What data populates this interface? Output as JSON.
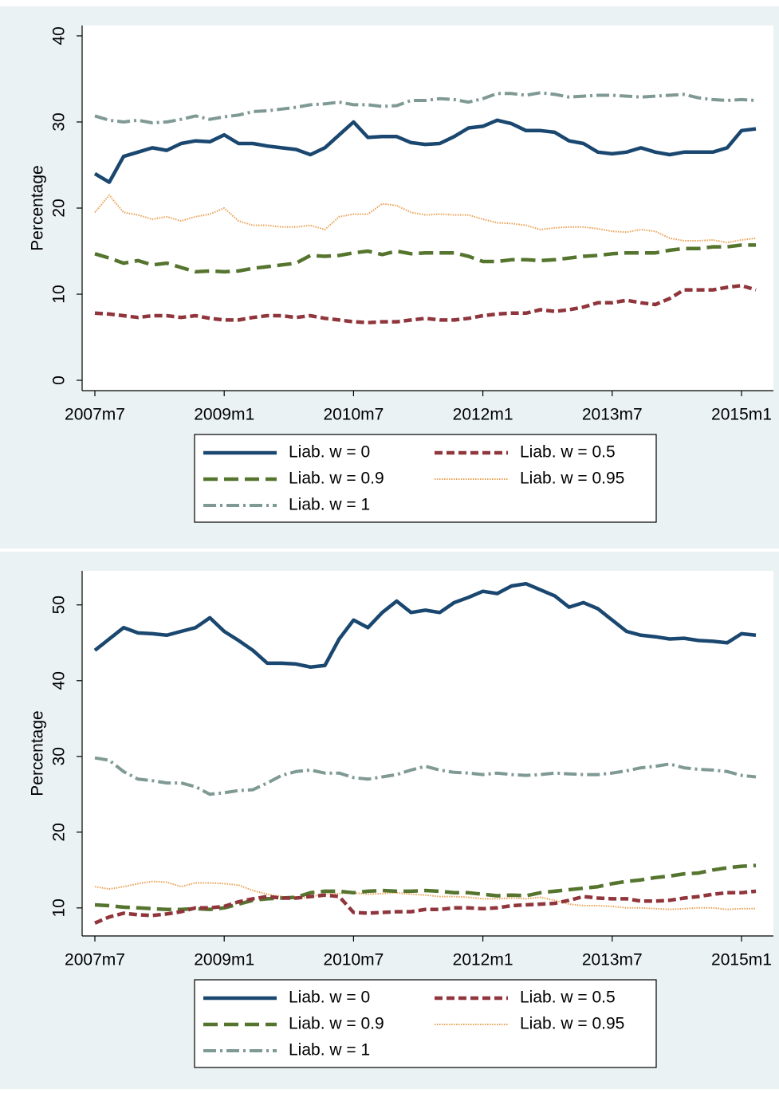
{
  "chart_data": [
    {
      "type": "line",
      "y_label": "Percentage",
      "categories": [
        "2007m7",
        null,
        null,
        null,
        null,
        null,
        null,
        null,
        null,
        "2009m1",
        null,
        null,
        null,
        null,
        null,
        null,
        null,
        null,
        "2010m7",
        null,
        null,
        null,
        null,
        null,
        null,
        null,
        null,
        "2012m1",
        null,
        null,
        null,
        null,
        null,
        null,
        null,
        null,
        "2013m7",
        null,
        null,
        null,
        null,
        null,
        null,
        null,
        null,
        "2015m1",
        null
      ],
      "ylim": [
        -1.2,
        41.2
      ],
      "yticks": [
        0,
        10,
        20,
        30,
        40
      ],
      "series": [
        {
          "name": "Liab. w = 0",
          "color": "#1a476f",
          "dash": "solid",
          "values": [
            24,
            23,
            26,
            26.5,
            27,
            26.7,
            27.5,
            27.8,
            27.7,
            28.5,
            27.5,
            27.5,
            27.2,
            27,
            26.8,
            26.2,
            27,
            28.5,
            30,
            28.2,
            28.3,
            28.3,
            27.6,
            27.4,
            27.5,
            28.3,
            29.3,
            29.5,
            30.2,
            29.8,
            29,
            29,
            28.8,
            27.8,
            27.5,
            26.5,
            26.3,
            26.5,
            27,
            26.5,
            26.2,
            26.5,
            26.5,
            26.5,
            27,
            29,
            29.2
          ]
        },
        {
          "name": "Liab. w = 0.5",
          "color": "#90353b",
          "dash": "short",
          "values": [
            7.8,
            7.7,
            7.5,
            7.3,
            7.5,
            7.5,
            7.3,
            7.5,
            7.2,
            7,
            7,
            7.3,
            7.5,
            7.5,
            7.3,
            7.5,
            7.2,
            7,
            6.8,
            6.7,
            6.8,
            6.8,
            7,
            7.2,
            7,
            7,
            7.2,
            7.5,
            7.7,
            7.8,
            7.8,
            8.2,
            8,
            8.2,
            8.5,
            9,
            9,
            9.3,
            9,
            8.8,
            9.5,
            10.5,
            10.5,
            10.5,
            10.8,
            11,
            10.5
          ]
        },
        {
          "name": "Liab. w = 0.9",
          "color": "#55752f",
          "dash": "long",
          "values": [
            14.7,
            14.2,
            13.6,
            13.9,
            13.4,
            13.6,
            13.1,
            12.6,
            12.7,
            12.6,
            12.7,
            13,
            13.2,
            13.4,
            13.6,
            14.5,
            14.4,
            14.5,
            14.8,
            15,
            14.6,
            15,
            14.7,
            14.8,
            14.8,
            14.8,
            14.4,
            13.8,
            13.8,
            14,
            14,
            13.9,
            14,
            14.2,
            14.4,
            14.5,
            14.7,
            14.8,
            14.8,
            14.8,
            15.1,
            15.3,
            15.3,
            15.5,
            15.5,
            15.7,
            15.7
          ]
        },
        {
          "name": "Liab. w = 0.95",
          "color": "#e8a052",
          "dash": "dot",
          "values": [
            19.5,
            21.5,
            19.5,
            19.2,
            18.7,
            19,
            18.5,
            19,
            19.3,
            20,
            18.5,
            18,
            18,
            17.8,
            17.8,
            18,
            17.5,
            19,
            19.3,
            19.3,
            20.5,
            20.3,
            19.5,
            19.2,
            19.3,
            19.2,
            19.2,
            18.7,
            18.3,
            18.2,
            18,
            17.5,
            17.7,
            17.8,
            17.8,
            17.6,
            17.3,
            17.2,
            17.5,
            17.3,
            16.5,
            16.2,
            16.2,
            16.3,
            16,
            16.3,
            16.5
          ]
        },
        {
          "name": "Liab. w = 1",
          "color": "#7f9a94",
          "dash": "dashdot",
          "values": [
            30.7,
            30.2,
            30,
            30.2,
            29.9,
            30,
            30.3,
            30.7,
            30.3,
            30.6,
            30.8,
            31.2,
            31.3,
            31.5,
            31.7,
            32,
            32.1,
            32.3,
            32,
            32,
            31.8,
            31.9,
            32.5,
            32.5,
            32.7,
            32.6,
            32.3,
            32.7,
            33.3,
            33.3,
            33.1,
            33.4,
            33.2,
            32.9,
            33,
            33.1,
            33.1,
            33,
            32.9,
            33,
            33.1,
            33.2,
            32.8,
            32.6,
            32.5,
            32.6,
            32.5
          ]
        }
      ]
    },
    {
      "type": "line",
      "y_label": "Percentage",
      "categories": [
        "2007m7",
        null,
        null,
        null,
        null,
        null,
        null,
        null,
        null,
        "2009m1",
        null,
        null,
        null,
        null,
        null,
        null,
        null,
        null,
        "2010m7",
        null,
        null,
        null,
        null,
        null,
        null,
        null,
        null,
        "2012m1",
        null,
        null,
        null,
        null,
        null,
        null,
        null,
        null,
        "2013m7",
        null,
        null,
        null,
        null,
        null,
        null,
        null,
        null,
        "2015m1",
        null
      ],
      "ylim": [
        6.3,
        54.5
      ],
      "yticks": [
        10,
        20,
        30,
        40,
        50
      ],
      "series": [
        {
          "name": "Liab. w = 0",
          "color": "#1a476f",
          "dash": "solid",
          "values": [
            44,
            45.5,
            47,
            46.3,
            46.2,
            46,
            46.5,
            47,
            48.3,
            46.5,
            45.3,
            44,
            42.3,
            42.3,
            42.2,
            41.8,
            42,
            45.5,
            48,
            47,
            49,
            50.5,
            49,
            49.3,
            49,
            50.3,
            51,
            51.8,
            51.5,
            52.5,
            52.8,
            52,
            51.2,
            49.7,
            50.3,
            49.5,
            48,
            46.5,
            46,
            45.8,
            45.5,
            45.6,
            45.3,
            45.2,
            45,
            46.2,
            46
          ]
        },
        {
          "name": "Liab. w = 0.5",
          "color": "#90353b",
          "dash": "short",
          "values": [
            8,
            8.8,
            9.3,
            9.1,
            9,
            9.2,
            9.5,
            10,
            10,
            10.2,
            10.8,
            11.2,
            11.5,
            11.3,
            11.3,
            11.5,
            11.7,
            11.5,
            9.4,
            9.3,
            9.4,
            9.5,
            9.5,
            9.8,
            9.8,
            10,
            10,
            9.9,
            10,
            10.3,
            10.4,
            10.5,
            10.6,
            11,
            11.5,
            11.3,
            11.2,
            11.2,
            10.9,
            10.9,
            11,
            11.3,
            11.5,
            11.8,
            12,
            12,
            12.2
          ]
        },
        {
          "name": "Liab. w = 0.9",
          "color": "#55752f",
          "dash": "long",
          "values": [
            10.4,
            10.3,
            10.1,
            10,
            9.9,
            9.8,
            9.8,
            9.9,
            9.8,
            10,
            10.5,
            11,
            11.2,
            11.3,
            11.4,
            12,
            12.2,
            12.2,
            12,
            12.2,
            12.3,
            12.2,
            12.2,
            12.3,
            12.2,
            12,
            12,
            11.8,
            11.6,
            11.7,
            11.6,
            12,
            12.2,
            12.4,
            12.6,
            12.8,
            13.2,
            13.5,
            13.7,
            14,
            14.2,
            14.5,
            14.6,
            15,
            15.3,
            15.5,
            15.6
          ]
        },
        {
          "name": "Liab. w = 0.95",
          "color": "#e8a052",
          "dash": "dot",
          "values": [
            12.8,
            12.5,
            12.8,
            13.2,
            13.5,
            13.4,
            12.8,
            13.3,
            13.3,
            13.2,
            13,
            12.3,
            11.8,
            11.5,
            11.2,
            11.5,
            11.8,
            11.9,
            12,
            11.8,
            11.9,
            12,
            11.8,
            11.7,
            11.5,
            11.5,
            11.4,
            11.2,
            11.2,
            11.3,
            11.2,
            11.4,
            11,
            10.5,
            10.3,
            10.3,
            10.2,
            10,
            10,
            9.9,
            9.8,
            9.9,
            10,
            10,
            9.8,
            9.9,
            9.9
          ]
        },
        {
          "name": "Liab. w = 1",
          "color": "#7f9a94",
          "dash": "dashdot",
          "values": [
            29.8,
            29.5,
            28,
            27,
            26.8,
            26.5,
            26.5,
            26,
            25,
            25.2,
            25.5,
            25.6,
            26.5,
            27.5,
            28,
            28.2,
            27.8,
            27.8,
            27.2,
            27,
            27.3,
            27.6,
            28.2,
            28.7,
            28.2,
            27.9,
            27.8,
            27.6,
            27.8,
            27.6,
            27.5,
            27.6,
            27.8,
            27.7,
            27.6,
            27.6,
            27.8,
            28.1,
            28.5,
            28.7,
            29,
            28.5,
            28.3,
            28.2,
            28,
            27.5,
            27.3
          ]
        }
      ]
    }
  ]
}
